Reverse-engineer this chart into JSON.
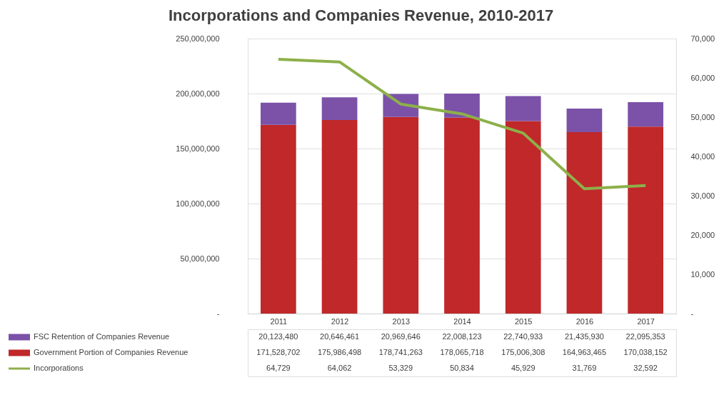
{
  "chart_data": {
    "type": "bar",
    "title": "Incorporations and Companies Revenue, 2010-2017",
    "categories": [
      "2011",
      "2012",
      "2013",
      "2014",
      "2015",
      "2016",
      "2017"
    ],
    "stacked": true,
    "series": [
      {
        "name": "Government Portion of Companies Revenue",
        "color": "#c0282a",
        "values": [
          171528702,
          175986498,
          178741263,
          178065718,
          175006308,
          164963465,
          170038152
        ],
        "value_labels": [
          "171,528,702",
          "175,986,498",
          "178,741,263",
          "178,065,718",
          "175,006,308",
          "164,963,465",
          "170,038,152"
        ]
      },
      {
        "name": "FSC Retention of Companies Revenue",
        "color": "#7b52a8",
        "values": [
          20123480,
          20646461,
          20969646,
          22008123,
          22740933,
          21435930,
          22095353
        ],
        "value_labels": [
          "20,123,480",
          "20,646,461",
          "20,969,646",
          "22,008,123",
          "22,740,933",
          "21,435,930",
          "22,095,353"
        ]
      },
      {
        "name": "Incorporations",
        "type": "line",
        "axis": "y2",
        "color": "#8db04a",
        "values": [
          64729,
          64062,
          53329,
          50834,
          45929,
          31769,
          32592
        ],
        "value_labels": [
          "64,729",
          "64,062",
          "53,329",
          "50,834",
          "45,929",
          "31,769",
          "32,592"
        ]
      }
    ],
    "ylim": [
      0,
      250000000
    ],
    "yticks": [
      {
        "value": 0,
        "label": "-"
      },
      {
        "value": 50000000,
        "label": "50,000,000"
      },
      {
        "value": 100000000,
        "label": "100,000,000"
      },
      {
        "value": 150000000,
        "label": "150,000,000"
      },
      {
        "value": 200000000,
        "label": "200,000,000"
      },
      {
        "value": 250000000,
        "label": "250,000,000"
      }
    ],
    "y2lim": [
      0,
      70000
    ],
    "y2ticks": [
      {
        "value": 0,
        "label": "-"
      },
      {
        "value": 10000,
        "label": "10,000"
      },
      {
        "value": 20000,
        "label": "20,000"
      },
      {
        "value": 30000,
        "label": "30,000"
      },
      {
        "value": 40000,
        "label": "40,000"
      },
      {
        "value": 50000,
        "label": "50,000"
      },
      {
        "value": 60000,
        "label": "60,000"
      },
      {
        "value": 70000,
        "label": "70,000"
      }
    ],
    "grid": "y",
    "legend": "bottom",
    "marker": "none"
  }
}
